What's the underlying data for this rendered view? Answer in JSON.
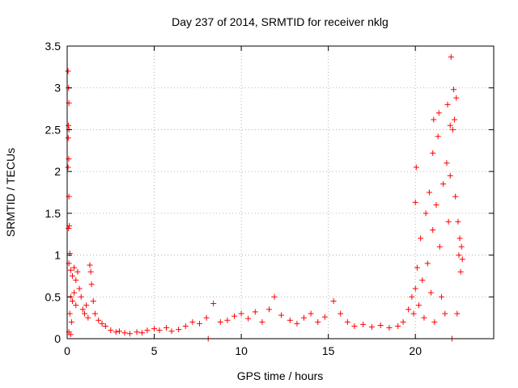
{
  "chart_data": {
    "type": "scatter",
    "title": "Day 237 of 2014, SRMTID for receiver nklg",
    "xlabel": "GPS time / hours",
    "ylabel": "SRMTID / TECUs",
    "xlim": [
      0,
      24.5
    ],
    "ylim": [
      0,
      3.5
    ],
    "xticks": [
      0,
      5,
      10,
      15,
      20
    ],
    "xtick_labels": [
      "0",
      "5",
      "10",
      "15",
      "20"
    ],
    "yticks": [
      0,
      0.5,
      1,
      1.5,
      2,
      2.5,
      3,
      3.5
    ],
    "ytick_labels": [
      "0",
      "0.5",
      "1",
      "1.5",
      "2",
      "2.5",
      "3",
      "3.5"
    ],
    "grid": true,
    "marker": "+",
    "color": "#ff0000",
    "series": [
      {
        "name": "SRMTID",
        "points": [
          [
            0.05,
            3.2
          ],
          [
            0.08,
            3.0
          ],
          [
            0.1,
            2.82
          ],
          [
            0.07,
            2.55
          ],
          [
            0.1,
            2.5
          ],
          [
            0.06,
            2.4
          ],
          [
            0.09,
            2.15
          ],
          [
            0.05,
            2.05
          ],
          [
            0.1,
            1.7
          ],
          [
            0.12,
            1.35
          ],
          [
            0.08,
            1.32
          ],
          [
            0.15,
            1.02
          ],
          [
            0.1,
            0.9
          ],
          [
            0.2,
            0.82
          ],
          [
            0.3,
            0.75
          ],
          [
            0.4,
            0.85
          ],
          [
            0.5,
            0.7
          ],
          [
            0.6,
            0.8
          ],
          [
            0.7,
            0.6
          ],
          [
            0.2,
            0.5
          ],
          [
            0.3,
            0.45
          ],
          [
            0.4,
            0.55
          ],
          [
            0.5,
            0.4
          ],
          [
            0.15,
            0.3
          ],
          [
            0.25,
            0.2
          ],
          [
            0.1,
            0.08
          ],
          [
            0.2,
            0.05
          ],
          [
            0.8,
            0.5
          ],
          [
            0.9,
            0.35
          ],
          [
            1.0,
            0.3
          ],
          [
            1.1,
            0.4
          ],
          [
            1.2,
            0.25
          ],
          [
            1.3,
            0.88
          ],
          [
            1.35,
            0.8
          ],
          [
            1.4,
            0.65
          ],
          [
            1.5,
            0.45
          ],
          [
            1.6,
            0.3
          ],
          [
            1.8,
            0.22
          ],
          [
            2.0,
            0.18
          ],
          [
            2.2,
            0.15
          ],
          [
            2.5,
            0.1
          ],
          [
            2.8,
            0.08
          ],
          [
            3.0,
            0.09
          ],
          [
            3.3,
            0.07
          ],
          [
            3.6,
            0.06
          ],
          [
            4.0,
            0.08
          ],
          [
            4.3,
            0.07
          ],
          [
            4.6,
            0.1
          ],
          [
            5.0,
            0.12
          ],
          [
            5.3,
            0.1
          ],
          [
            5.7,
            0.13
          ],
          [
            6.0,
            0.09
          ],
          [
            6.4,
            0.11
          ],
          [
            6.8,
            0.15
          ],
          [
            7.2,
            0.2
          ],
          [
            7.6,
            0.18
          ],
          [
            8.0,
            0.25
          ],
          [
            8.1,
            0.0
          ],
          [
            8.4,
            0.42
          ],
          [
            8.8,
            0.2
          ],
          [
            9.2,
            0.22
          ],
          [
            9.6,
            0.27
          ],
          [
            10.0,
            0.3
          ],
          [
            10.4,
            0.24
          ],
          [
            10.8,
            0.32
          ],
          [
            11.2,
            0.2
          ],
          [
            11.6,
            0.35
          ],
          [
            11.9,
            0.5
          ],
          [
            12.3,
            0.28
          ],
          [
            12.8,
            0.22
          ],
          [
            13.2,
            0.18
          ],
          [
            13.6,
            0.25
          ],
          [
            14.0,
            0.3
          ],
          [
            14.4,
            0.2
          ],
          [
            14.8,
            0.26
          ],
          [
            15.3,
            0.45
          ],
          [
            15.7,
            0.3
          ],
          [
            16.1,
            0.2
          ],
          [
            16.5,
            0.15
          ],
          [
            17.0,
            0.17
          ],
          [
            17.5,
            0.14
          ],
          [
            18.0,
            0.16
          ],
          [
            18.5,
            0.13
          ],
          [
            19.0,
            0.15
          ],
          [
            19.3,
            0.2
          ],
          [
            19.6,
            0.35
          ],
          [
            19.8,
            0.5
          ],
          [
            19.9,
            0.3
          ],
          [
            20.0,
            0.6
          ],
          [
            20.0,
            1.63
          ],
          [
            20.05,
            2.05
          ],
          [
            20.1,
            0.85
          ],
          [
            20.2,
            0.4
          ],
          [
            20.3,
            1.2
          ],
          [
            20.4,
            0.7
          ],
          [
            20.5,
            0.25
          ],
          [
            20.6,
            1.5
          ],
          [
            20.7,
            0.9
          ],
          [
            20.8,
            1.75
          ],
          [
            20.9,
            0.55
          ],
          [
            21.0,
            1.3
          ],
          [
            21.0,
            2.22
          ],
          [
            21.05,
            2.62
          ],
          [
            21.1,
            0.2
          ],
          [
            21.2,
            1.6
          ],
          [
            21.3,
            2.42
          ],
          [
            21.35,
            2.7
          ],
          [
            21.4,
            1.1
          ],
          [
            21.5,
            0.5
          ],
          [
            21.6,
            1.85
          ],
          [
            21.7,
            0.3
          ],
          [
            21.8,
            2.1
          ],
          [
            21.85,
            2.8
          ],
          [
            21.9,
            1.4
          ],
          [
            22.0,
            2.55
          ],
          [
            22.0,
            1.95
          ],
          [
            22.05,
            3.37
          ],
          [
            22.1,
            0.0
          ],
          [
            22.15,
            2.5
          ],
          [
            22.2,
            2.98
          ],
          [
            22.25,
            2.62
          ],
          [
            22.3,
            1.7
          ],
          [
            22.35,
            2.88
          ],
          [
            22.4,
            0.3
          ],
          [
            22.45,
            1.4
          ],
          [
            22.5,
            1.0
          ],
          [
            22.55,
            1.2
          ],
          [
            22.6,
            0.8
          ],
          [
            22.65,
            1.1
          ],
          [
            22.7,
            0.95
          ]
        ]
      }
    ]
  }
}
